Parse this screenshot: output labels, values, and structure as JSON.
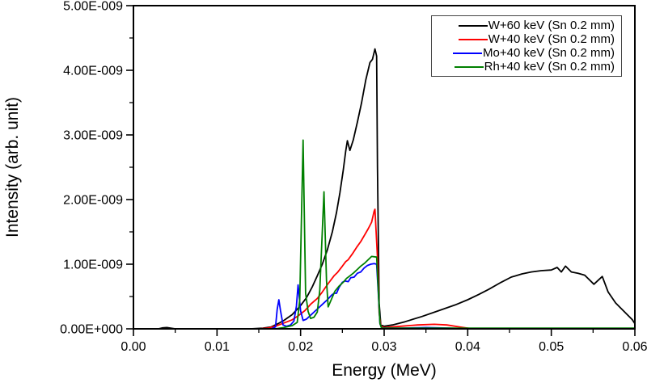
{
  "chart_data": {
    "type": "line",
    "title": "",
    "xlabel": "Energy (MeV)",
    "ylabel": "Intensity (arb. unit)",
    "xlim": [
      0.0,
      0.06
    ],
    "ylim": [
      0.0,
      5e-09
    ],
    "grid": false,
    "legend_position": "top-right",
    "x_ticks": {
      "values": [
        0.0,
        0.01,
        0.02,
        0.03,
        0.04,
        0.05,
        0.06
      ],
      "labels": [
        "0.00",
        "0.01",
        "0.02",
        "0.03",
        "0.04",
        "0.05",
        "0.06"
      ]
    },
    "x_minor_ticks": [
      0.005,
      0.015,
      0.025,
      0.035,
      0.045,
      0.055
    ],
    "y_ticks": {
      "values": [
        0,
        1e-09,
        2e-09,
        3e-09,
        4e-09,
        5e-09
      ],
      "labels": [
        "0.00E+000",
        "1.00E-009",
        "2.00E-009",
        "3.00E-009",
        "4.00E-009",
        "5.00E-009"
      ]
    },
    "y_minor_ticks": [
      5e-10,
      1.5e-09,
      2.5e-09,
      3.5e-09,
      4.5e-09
    ],
    "intensity_scale": 1e-09,
    "series": [
      {
        "name": "W+60 keV (Sn 0.2 mm)",
        "color": "#000000",
        "points": [
          [
            0.0,
            0
          ],
          [
            0.003,
            0
          ],
          [
            0.0035,
            0.015
          ],
          [
            0.004,
            0.02
          ],
          [
            0.005,
            0
          ],
          [
            0.014,
            0
          ],
          [
            0.0155,
            0.01
          ],
          [
            0.0165,
            0.03
          ],
          [
            0.0173,
            0.08
          ],
          [
            0.018,
            0.13
          ],
          [
            0.019,
            0.22
          ],
          [
            0.02,
            0.36
          ],
          [
            0.0207,
            0.48
          ],
          [
            0.0214,
            0.65
          ],
          [
            0.022,
            0.82
          ],
          [
            0.0226,
            1.0
          ],
          [
            0.0232,
            1.22
          ],
          [
            0.0238,
            1.5
          ],
          [
            0.0243,
            1.8
          ],
          [
            0.0247,
            2.1
          ],
          [
            0.0251,
            2.45
          ],
          [
            0.0254,
            2.75
          ],
          [
            0.0256,
            2.91
          ],
          [
            0.0259,
            2.76
          ],
          [
            0.0263,
            2.92
          ],
          [
            0.0268,
            3.2
          ],
          [
            0.0273,
            3.5
          ],
          [
            0.0278,
            3.85
          ],
          [
            0.0283,
            4.12
          ],
          [
            0.0286,
            4.17
          ],
          [
            0.0289,
            4.33
          ],
          [
            0.0291,
            4.22
          ],
          [
            0.0292,
            2.5
          ],
          [
            0.0294,
            0.4
          ],
          [
            0.0296,
            0.06
          ],
          [
            0.03,
            0.04
          ],
          [
            0.031,
            0.06
          ],
          [
            0.0325,
            0.11
          ],
          [
            0.0345,
            0.19
          ],
          [
            0.0365,
            0.28
          ],
          [
            0.0385,
            0.37
          ],
          [
            0.04,
            0.45
          ],
          [
            0.0413,
            0.53
          ],
          [
            0.0425,
            0.61
          ],
          [
            0.044,
            0.72
          ],
          [
            0.0452,
            0.8
          ],
          [
            0.0465,
            0.85
          ],
          [
            0.0476,
            0.88
          ],
          [
            0.0488,
            0.9
          ],
          [
            0.05,
            0.91
          ],
          [
            0.0507,
            0.95
          ],
          [
            0.0512,
            0.88
          ],
          [
            0.0517,
            0.97
          ],
          [
            0.0524,
            0.88
          ],
          [
            0.0532,
            0.86
          ],
          [
            0.054,
            0.83
          ],
          [
            0.0551,
            0.69
          ],
          [
            0.0561,
            0.81
          ],
          [
            0.0568,
            0.57
          ],
          [
            0.0577,
            0.4
          ],
          [
            0.0587,
            0.27
          ],
          [
            0.0597,
            0.14
          ],
          [
            0.06,
            0.08
          ]
        ]
      },
      {
        "name": "W+40 keV (Sn 0.2 mm)",
        "color": "#ff0000",
        "points": [
          [
            0.0,
            0
          ],
          [
            0.015,
            0
          ],
          [
            0.016,
            0.01
          ],
          [
            0.017,
            0.04
          ],
          [
            0.018,
            0.09
          ],
          [
            0.019,
            0.14
          ],
          [
            0.0197,
            0.2
          ],
          [
            0.0205,
            0.28
          ],
          [
            0.0212,
            0.38
          ],
          [
            0.022,
            0.47
          ],
          [
            0.0226,
            0.57
          ],
          [
            0.0233,
            0.7
          ],
          [
            0.024,
            0.82
          ],
          [
            0.0244,
            0.87
          ],
          [
            0.025,
            0.97
          ],
          [
            0.0254,
            1.04
          ],
          [
            0.0257,
            1.07
          ],
          [
            0.0262,
            1.16
          ],
          [
            0.0267,
            1.26
          ],
          [
            0.0272,
            1.35
          ],
          [
            0.0277,
            1.46
          ],
          [
            0.0281,
            1.55
          ],
          [
            0.0285,
            1.65
          ],
          [
            0.0288,
            1.82
          ],
          [
            0.0289,
            1.85
          ],
          [
            0.0292,
            1.1
          ],
          [
            0.0294,
            0.25
          ],
          [
            0.0296,
            0.04
          ],
          [
            0.03,
            0.02
          ],
          [
            0.032,
            0.04
          ],
          [
            0.034,
            0.06
          ],
          [
            0.036,
            0.07
          ],
          [
            0.0375,
            0.06
          ],
          [
            0.039,
            0.03
          ],
          [
            0.04,
            0.01
          ],
          [
            0.0405,
            0
          ],
          [
            0.06,
            0
          ]
        ]
      },
      {
        "name": "Mo+40 keV (Sn 0.2 mm)",
        "color": "#0000ff",
        "points": [
          [
            0.0,
            0
          ],
          [
            0.0165,
            0
          ],
          [
            0.017,
            0.03
          ],
          [
            0.0172,
            0.3
          ],
          [
            0.0174,
            0.45
          ],
          [
            0.0176,
            0.28
          ],
          [
            0.0179,
            0.06
          ],
          [
            0.0183,
            0.04
          ],
          [
            0.0188,
            0.06
          ],
          [
            0.0192,
            0.12
          ],
          [
            0.0195,
            0.35
          ],
          [
            0.0197,
            0.68
          ],
          [
            0.02,
            0.28
          ],
          [
            0.0203,
            0.13
          ],
          [
            0.0207,
            0.15
          ],
          [
            0.0212,
            0.21
          ],
          [
            0.0217,
            0.27
          ],
          [
            0.0222,
            0.33
          ],
          [
            0.0227,
            0.39
          ],
          [
            0.0232,
            0.45
          ],
          [
            0.0237,
            0.52
          ],
          [
            0.024,
            0.55
          ],
          [
            0.0243,
            0.55
          ],
          [
            0.0246,
            0.64
          ],
          [
            0.025,
            0.72
          ],
          [
            0.0253,
            0.74
          ],
          [
            0.0257,
            0.73
          ],
          [
            0.026,
            0.79
          ],
          [
            0.0264,
            0.8
          ],
          [
            0.0268,
            0.86
          ],
          [
            0.0272,
            0.88
          ],
          [
            0.0276,
            0.94
          ],
          [
            0.028,
            0.98
          ],
          [
            0.0284,
            1.0
          ],
          [
            0.0288,
            1.01
          ],
          [
            0.0291,
            1.0
          ],
          [
            0.0293,
            0.55
          ],
          [
            0.0295,
            0.08
          ],
          [
            0.0297,
            0.01
          ],
          [
            0.032,
            0.01
          ],
          [
            0.035,
            0.02
          ],
          [
            0.038,
            0.01
          ],
          [
            0.04,
            0
          ],
          [
            0.06,
            0
          ]
        ]
      },
      {
        "name": "Rh+40 keV (Sn 0.2 mm)",
        "color": "#008000",
        "points": [
          [
            0.0,
            0
          ],
          [
            0.017,
            0
          ],
          [
            0.018,
            0.02
          ],
          [
            0.019,
            0.05
          ],
          [
            0.0196,
            0.1
          ],
          [
            0.0199,
            0.45
          ],
          [
            0.0203,
            2.92
          ],
          [
            0.0206,
            0.55
          ],
          [
            0.0209,
            0.27
          ],
          [
            0.0212,
            0.16
          ],
          [
            0.0216,
            0.18
          ],
          [
            0.022,
            0.26
          ],
          [
            0.0223,
            0.6
          ],
          [
            0.0228,
            2.12
          ],
          [
            0.0231,
            0.75
          ],
          [
            0.0233,
            0.34
          ],
          [
            0.0237,
            0.46
          ],
          [
            0.0241,
            0.58
          ],
          [
            0.0246,
            0.66
          ],
          [
            0.0251,
            0.72
          ],
          [
            0.0255,
            0.78
          ],
          [
            0.0259,
            0.82
          ],
          [
            0.0263,
            0.86
          ],
          [
            0.0268,
            0.92
          ],
          [
            0.0272,
            0.97
          ],
          [
            0.0277,
            1.02
          ],
          [
            0.0281,
            1.07
          ],
          [
            0.0285,
            1.12
          ],
          [
            0.0291,
            1.11
          ],
          [
            0.0293,
            0.6
          ],
          [
            0.0295,
            0.08
          ],
          [
            0.0297,
            0.01
          ],
          [
            0.04,
            0.01
          ],
          [
            0.06,
            0.01
          ]
        ]
      }
    ]
  }
}
